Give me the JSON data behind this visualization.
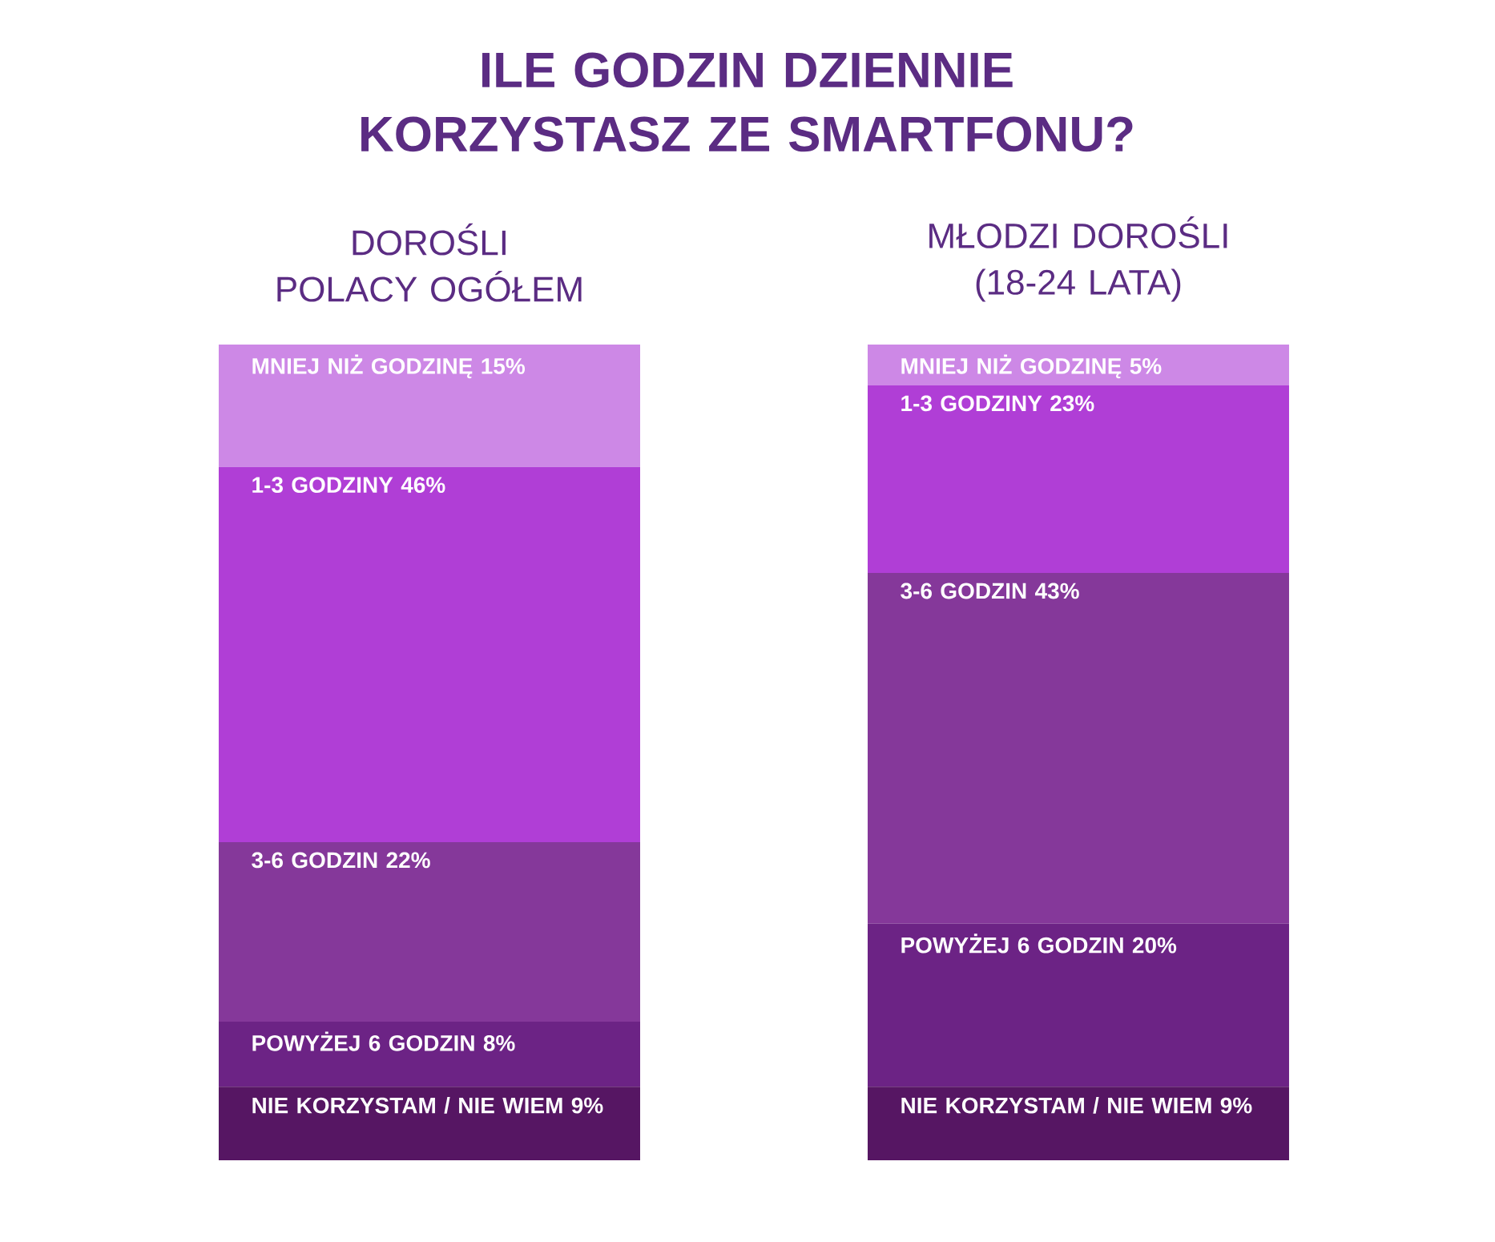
{
  "chart_data": {
    "type": "bar",
    "stacked": true,
    "title": "ILE GODZIN DZIENNIE KORZYSTASZ ZE SMARTFONU?",
    "categories": [
      "DOROŚLI POLACY OGÓŁEM",
      "MŁODZI DOROŚLI (18-24 LATA)"
    ],
    "series": [
      {
        "name": "NIE KORZYSTAM / NIE WIEM",
        "color": "#561663",
        "values": [
          9,
          9
        ],
        "value_labels": [
          "9%",
          "9%"
        ]
      },
      {
        "name": "POWYŻEJ 6 GODZIN",
        "color": "#6c2385",
        "values": [
          8,
          20
        ],
        "value_labels": [
          "8%",
          "20%"
        ]
      },
      {
        "name": "3-6 GODZIN",
        "color": "#85389a",
        "values": [
          22,
          43
        ],
        "value_labels": [
          "22%",
          "43%"
        ]
      },
      {
        "name": "1-3 GODZINY",
        "color": "#b03ed6",
        "values": [
          46,
          23
        ],
        "value_labels": [
          "46%",
          "23%"
        ]
      },
      {
        "name": "MNIEJ NIŻ GODZINĘ",
        "color": "#cd88e6",
        "values": [
          15,
          5
        ],
        "value_labels": [
          "15%",
          "5%"
        ]
      }
    ]
  }
}
